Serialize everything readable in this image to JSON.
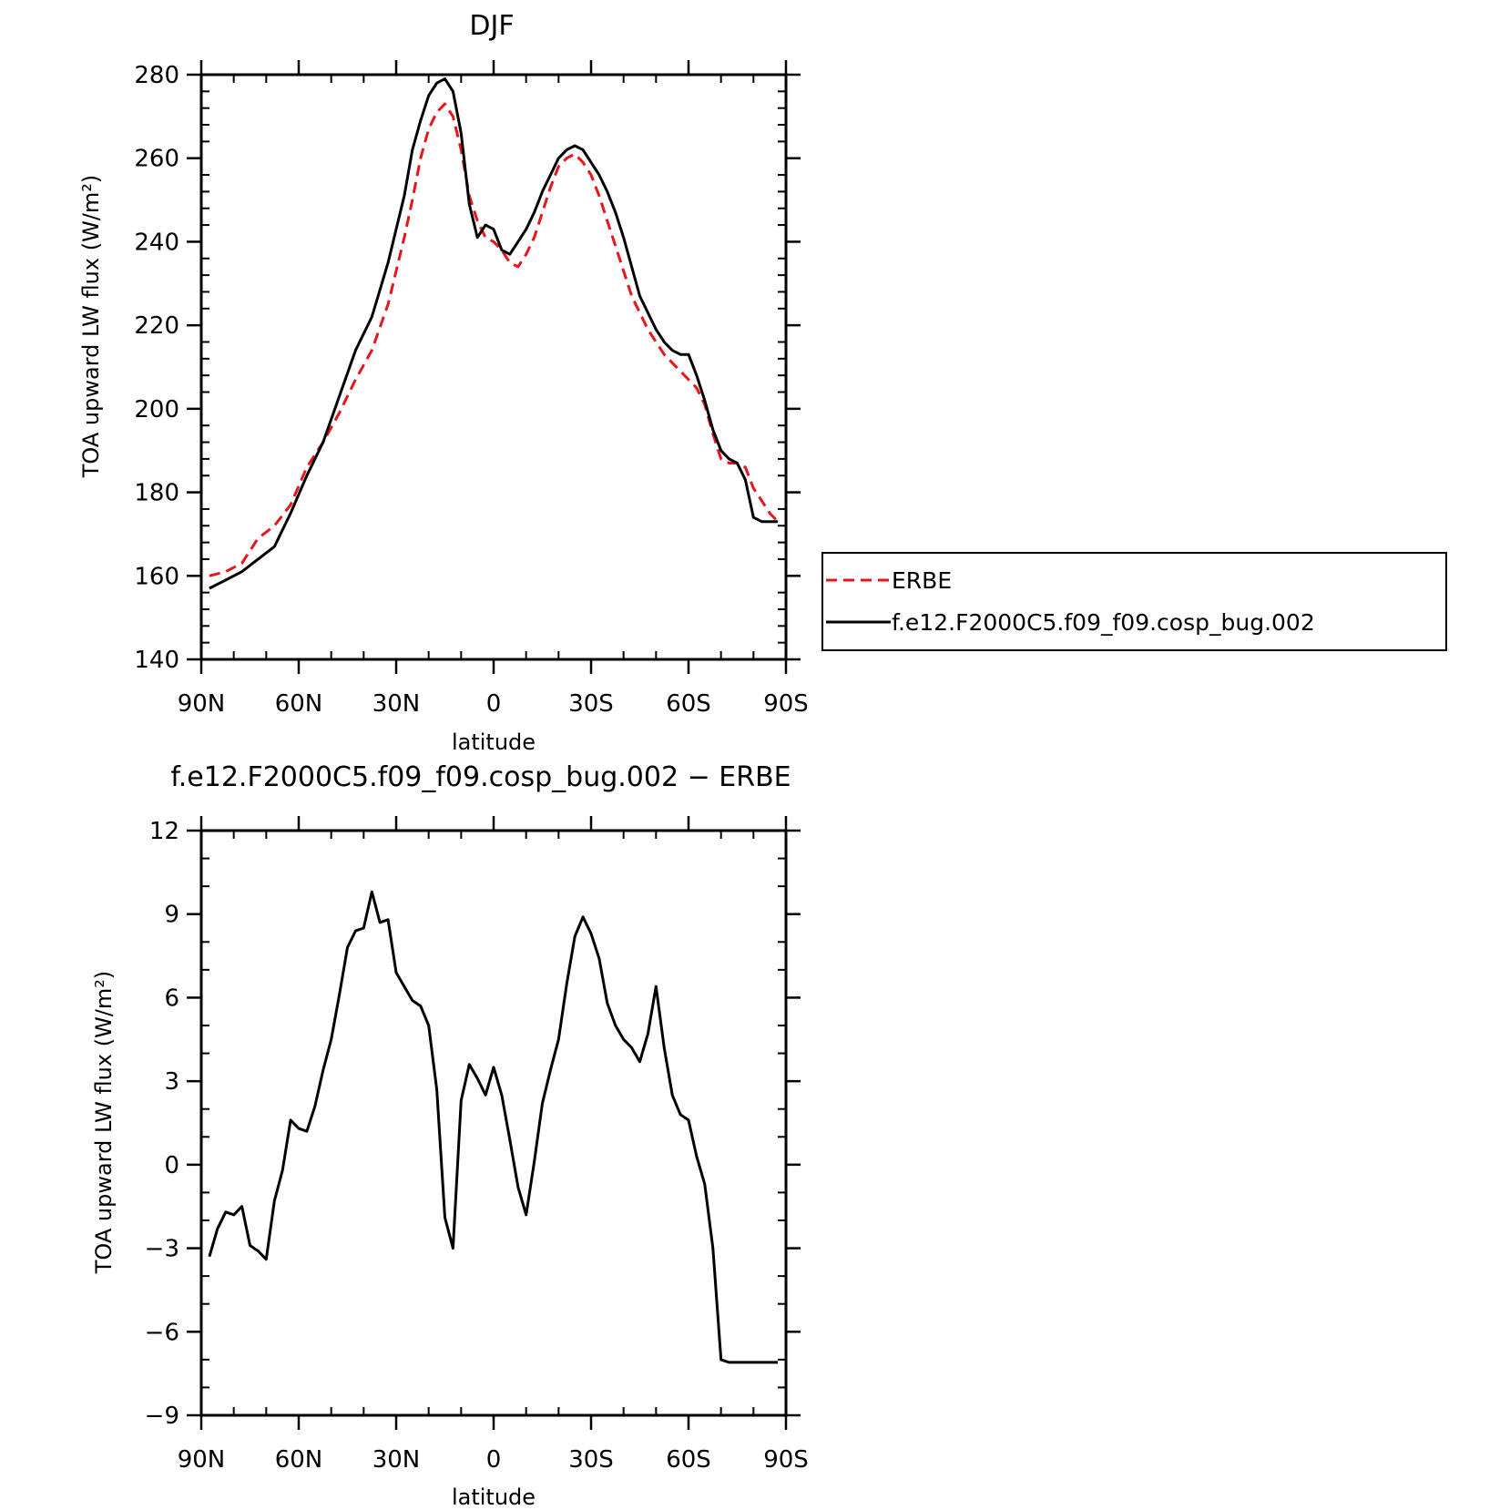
{
  "chart_data": [
    {
      "type": "line",
      "title": "DJF",
      "xlabel": "latitude",
      "ylabel": "TOA upward LW flux",
      "ylabel_unit": "(W/m²)",
      "xlim": [
        90,
        -90
      ],
      "ylim": [
        140,
        280
      ],
      "x_ticks": [
        90,
        60,
        30,
        0,
        -30,
        -60,
        -90
      ],
      "x_tick_labels": [
        "90N",
        "60N",
        "30N",
        "0",
        "30S",
        "60S",
        "90S"
      ],
      "y_ticks": [
        140,
        160,
        180,
        200,
        220,
        240,
        260,
        280
      ],
      "y_tick_labels": [
        "140",
        "160",
        "180",
        "200",
        "220",
        "240",
        "260",
        "280"
      ],
      "legend_position": "right",
      "series": [
        {
          "name": "ERBE",
          "color": "#e8161b",
          "dash": "dashed",
          "x": [
            87.5,
            82.5,
            77.5,
            72.5,
            67.5,
            62.5,
            57.5,
            52.5,
            47.5,
            42.5,
            37.5,
            32.5,
            27.5,
            25,
            22.5,
            20,
            17.5,
            15,
            12.5,
            10,
            7.5,
            5,
            2.5,
            0,
            -2.5,
            -5,
            -7.5,
            -10,
            -12.5,
            -15,
            -17.5,
            -20,
            -22.5,
            -25,
            -27.5,
            -30,
            -32.5,
            -35,
            -37.5,
            -40,
            -42.5,
            -45,
            -47.5,
            -50,
            -52.5,
            -55,
            -57.5,
            -60,
            -62.5,
            -65,
            -67.5,
            -70,
            -72.5,
            -75,
            -77.5,
            -80,
            -82.5,
            -85,
            -87.5
          ],
          "values": [
            160,
            161,
            163,
            169,
            172,
            177,
            186,
            192,
            199,
            207,
            214,
            225,
            241,
            250,
            260,
            267,
            271,
            273,
            270,
            262,
            251,
            245,
            241,
            240,
            238,
            235,
            234,
            237,
            241,
            247,
            253,
            258,
            260,
            261,
            259,
            256,
            251,
            245,
            239,
            233,
            227,
            223,
            219,
            216,
            213,
            211,
            209,
            207,
            205,
            201,
            194,
            188,
            187,
            187,
            186,
            181,
            178,
            175,
            173
          ]
        },
        {
          "name": "f.e12.F2000C5.f09_f09.cosp_bug.002",
          "color": "#000000",
          "dash": "solid",
          "x": [
            87.5,
            82.5,
            77.5,
            72.5,
            67.5,
            62.5,
            57.5,
            52.5,
            47.5,
            42.5,
            37.5,
            32.5,
            27.5,
            25,
            22.5,
            20,
            17.5,
            15,
            12.5,
            10,
            7.5,
            5,
            2.5,
            0,
            -2.5,
            -5,
            -7.5,
            -10,
            -12.5,
            -15,
            -17.5,
            -20,
            -22.5,
            -25,
            -27.5,
            -30,
            -32.5,
            -35,
            -37.5,
            -40,
            -42.5,
            -45,
            -47.5,
            -50,
            -52.5,
            -55,
            -57.5,
            -60,
            -62.5,
            -65,
            -67.5,
            -70,
            -72.5,
            -75,
            -77.5,
            -80,
            -82.5,
            -85,
            -87.5
          ],
          "values": [
            157,
            159,
            161,
            164,
            167,
            175,
            184,
            192,
            203,
            214,
            222,
            235,
            251,
            262,
            269,
            275,
            278,
            279,
            276,
            266,
            249,
            241,
            244,
            243,
            238,
            237,
            240,
            243,
            247,
            252,
            256,
            260,
            262,
            263,
            262,
            259,
            256,
            252,
            247,
            241,
            234,
            227,
            223,
            219,
            216,
            214,
            213,
            213,
            208,
            202,
            195,
            190,
            188,
            187,
            183,
            174,
            173,
            173,
            173
          ]
        }
      ]
    },
    {
      "type": "line",
      "title": "f.e12.F2000C5.f09_f09.cosp_bug.002 − ERBE",
      "xlabel": "latitude",
      "ylabel": "TOA upward LW flux",
      "ylabel_unit": "(W/m²)",
      "xlim": [
        90,
        -90
      ],
      "ylim": [
        -9,
        12
      ],
      "x_ticks": [
        90,
        60,
        30,
        0,
        -30,
        -60,
        -90
      ],
      "x_tick_labels": [
        "90N",
        "60N",
        "30N",
        "0",
        "30S",
        "60S",
        "90S"
      ],
      "y_ticks": [
        -9,
        -6,
        -3,
        0,
        3,
        6,
        9,
        12
      ],
      "y_tick_labels": [
        "−9",
        "−6",
        "−3",
        "0",
        "3",
        "6",
        "9",
        "12"
      ],
      "series": [
        {
          "color": "#000000",
          "dash": "solid",
          "x": [
            87.5,
            85,
            82.5,
            80,
            77.5,
            75,
            72.5,
            70,
            67.5,
            65,
            62.5,
            60,
            57.5,
            55,
            52.5,
            50,
            47.5,
            45,
            42.5,
            40,
            37.5,
            35,
            32.5,
            30,
            27.5,
            25,
            22.5,
            20,
            17.5,
            15,
            12.5,
            10,
            7.5,
            5,
            2.5,
            0,
            -2.5,
            -5,
            -7.5,
            -10,
            -12.5,
            -15,
            -17.5,
            -20,
            -22.5,
            -25,
            -27.5,
            -30,
            -32.5,
            -35,
            -37.5,
            -40,
            -42.5,
            -45,
            -47.5,
            -50,
            -52.5,
            -55,
            -57.5,
            -60,
            -62.5,
            -65,
            -67.5,
            -70,
            -72.5,
            -75,
            -77.5,
            -80,
            -82.5,
            -85,
            -87.5
          ],
          "values": [
            -3.3,
            -2.3,
            -1.7,
            -1.8,
            -1.5,
            -2.9,
            -3.1,
            -3.4,
            -1.3,
            -0.2,
            1.6,
            1.3,
            1.2,
            2.1,
            3.4,
            4.5,
            6.1,
            7.8,
            8.4,
            8.5,
            9.8,
            8.7,
            8.8,
            6.9,
            6.4,
            5.9,
            5.7,
            5.0,
            2.7,
            -1.9,
            -3.0,
            2.3,
            3.6,
            3.1,
            2.5,
            3.5,
            2.5,
            0.9,
            -0.8,
            -1.8,
            0.1,
            2.2,
            3.4,
            4.5,
            6.5,
            8.2,
            8.9,
            8.3,
            7.4,
            5.8,
            5.0,
            4.5,
            4.2,
            3.7,
            4.7,
            6.4,
            4.2,
            2.5,
            1.8,
            1.6,
            0.3,
            -0.7,
            -3.0,
            -7.0,
            -7.1,
            -7.1,
            -7.1,
            -7.1,
            -7.1,
            -7.1,
            -7.1
          ]
        }
      ]
    }
  ]
}
